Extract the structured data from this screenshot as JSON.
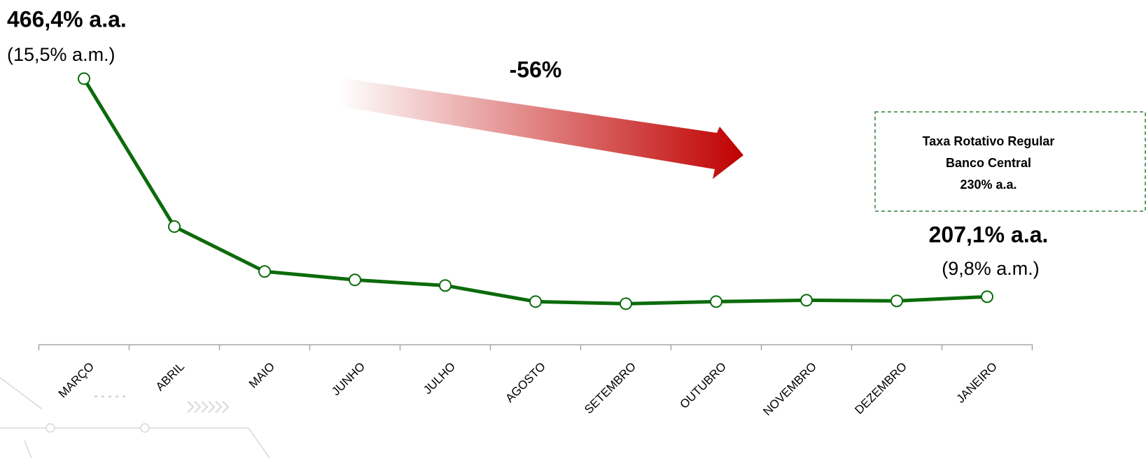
{
  "chart_data": {
    "type": "line",
    "categories": [
      "MARÇO",
      "ABRIL",
      "MAIO",
      "JUNHO",
      "JULHO",
      "AGOSTO",
      "SETEMBRO",
      "OUTUBRO",
      "NOVEMBRO",
      "DEZEMBRO",
      "JANEIRO"
    ],
    "values": [
      466.4,
      290.5,
      237.1,
      227.1,
      220.4,
      201.3,
      198.8,
      201.3,
      202.9,
      202.1,
      207.1
    ],
    "value_labels": [
      "466,4% a.a.",
      null,
      null,
      null,
      null,
      null,
      null,
      null,
      null,
      null,
      "207,1% a.a."
    ],
    "value_sublabels": [
      "(15,5% a.m.)",
      null,
      null,
      null,
      null,
      null,
      null,
      null,
      null,
      null,
      "(9,8% a.m.)"
    ],
    "color": "#0b6b0b",
    "ylim": [
      150,
      560
    ],
    "annotations": [
      "-56%"
    ],
    "box_text": [
      "Taxa Rotativo Regular",
      "Banco Central",
      "230% a.a."
    ]
  }
}
